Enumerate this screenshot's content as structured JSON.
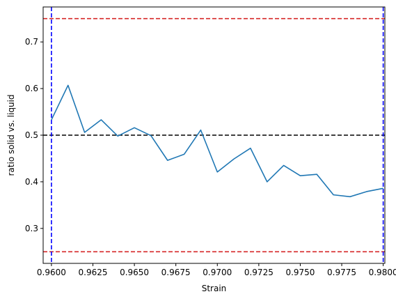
{
  "chart_data": {
    "type": "line",
    "title": "",
    "xlabel": "Strain",
    "ylabel": "ratio solid vs. liquid",
    "xlim": [
      0.9595,
      0.9801
    ],
    "ylim": [
      0.225,
      0.775
    ],
    "grid": false,
    "x_ticks": [
      0.96,
      0.9625,
      0.965,
      0.9675,
      0.97,
      0.9725,
      0.975,
      0.9775,
      0.98
    ],
    "x_tick_labels": [
      "0.9600",
      "0.9625",
      "0.9650",
      "0.9675",
      "0.9700",
      "0.9725",
      "0.9750",
      "0.9775",
      "0.9800"
    ],
    "y_ticks": [
      0.3,
      0.4,
      0.5,
      0.6,
      0.7
    ],
    "y_tick_labels": [
      "0.3",
      "0.4",
      "0.5",
      "0.6",
      "0.7"
    ],
    "series": [
      {
        "color": "#1f77b4",
        "x": [
          0.96,
          0.961,
          0.962,
          0.963,
          0.964,
          0.965,
          0.966,
          0.967,
          0.968,
          0.969,
          0.97,
          0.971,
          0.972,
          0.973,
          0.974,
          0.975,
          0.976,
          0.977,
          0.978,
          0.979,
          0.98
        ],
        "y": [
          0.533,
          0.607,
          0.506,
          0.533,
          0.498,
          0.516,
          0.499,
          0.446,
          0.459,
          0.511,
          0.421,
          0.449,
          0.472,
          0.4,
          0.435,
          0.413,
          0.416,
          0.372,
          0.368,
          0.379,
          0.386
        ]
      }
    ],
    "reference_lines": [
      {
        "orientation": "horizontal",
        "value": 0.75,
        "color": "#d62728",
        "style": "dashed"
      },
      {
        "orientation": "horizontal",
        "value": 0.25,
        "color": "#d62728",
        "style": "dashed"
      },
      {
        "orientation": "horizontal",
        "value": 0.5,
        "color": "#000000",
        "style": "dashed"
      },
      {
        "orientation": "vertical",
        "value": 0.96,
        "color": "#0000ff",
        "style": "dashed"
      },
      {
        "orientation": "vertical",
        "value": 0.98,
        "color": "#0000ff",
        "style": "dashed"
      }
    ]
  }
}
